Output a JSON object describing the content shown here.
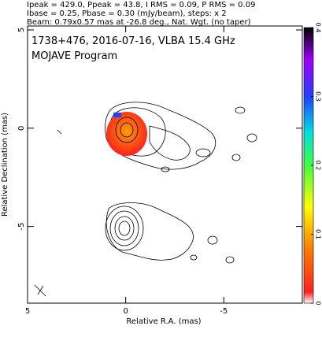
{
  "chart_data": {
    "type": "contour",
    "header_lines": [
      "Ipeak = 429.0, Ppeak = 43.8, I RMS = 0.09, P RMS = 0.09",
      "Ibase = 0.25, Pbase = 0.30 (mJy/beam), steps: x 2",
      "Beam: 0.79x0.57 mas at -26.8 deg., Nat. Wgt. (no taper)"
    ],
    "title": "1738+476, 2016-07-16, VLBA 15.4 GHz",
    "subtitle": "MOJAVE Program",
    "x_label": "Relative R.A. (mas)",
    "y_label": "Relative Declination (mas)",
    "xlim": [
      5,
      -9
    ],
    "xticks": [
      5,
      0,
      -5
    ],
    "ylim": [
      -8.9,
      5.2
    ],
    "yticks": [
      5,
      0,
      -5
    ],
    "colorbar": {
      "lim": [
        0,
        0.4
      ],
      "ticks": [
        0,
        0.1,
        0.2,
        0.3,
        0.4
      ]
    }
  }
}
